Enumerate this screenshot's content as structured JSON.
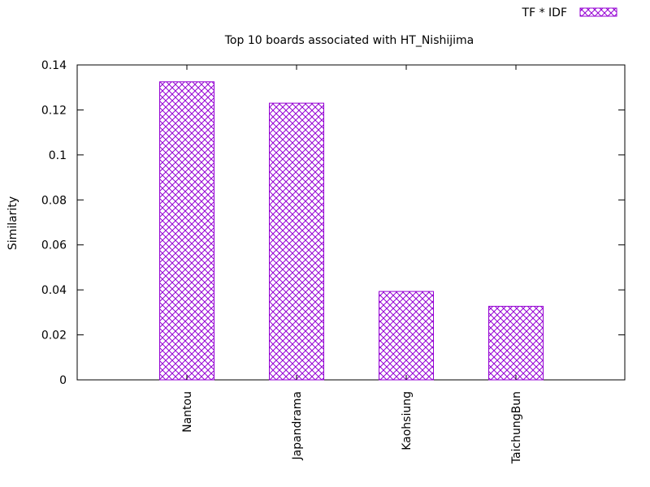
{
  "chart_data": {
    "type": "bar",
    "title": "Top 10 boards associated with HT_Nishijima",
    "xlabel": "",
    "ylabel": "Similarity",
    "categories": [
      "Nantou",
      "Japandrama",
      "Kaohsiung",
      "TaichungBun"
    ],
    "series": [
      {
        "name": "TF * IDF",
        "values": [
          0.1325,
          0.123,
          0.0393,
          0.0327
        ]
      }
    ],
    "ylim": [
      0,
      0.14
    ],
    "yticks": [
      "0",
      "0.02",
      "0.04",
      "0.06",
      "0.08",
      "0.1",
      "0.12",
      "0.14"
    ],
    "grid": false,
    "legend_position": "top-right",
    "bar_color": "#9400d3",
    "bar_pattern": "crosshatch"
  }
}
